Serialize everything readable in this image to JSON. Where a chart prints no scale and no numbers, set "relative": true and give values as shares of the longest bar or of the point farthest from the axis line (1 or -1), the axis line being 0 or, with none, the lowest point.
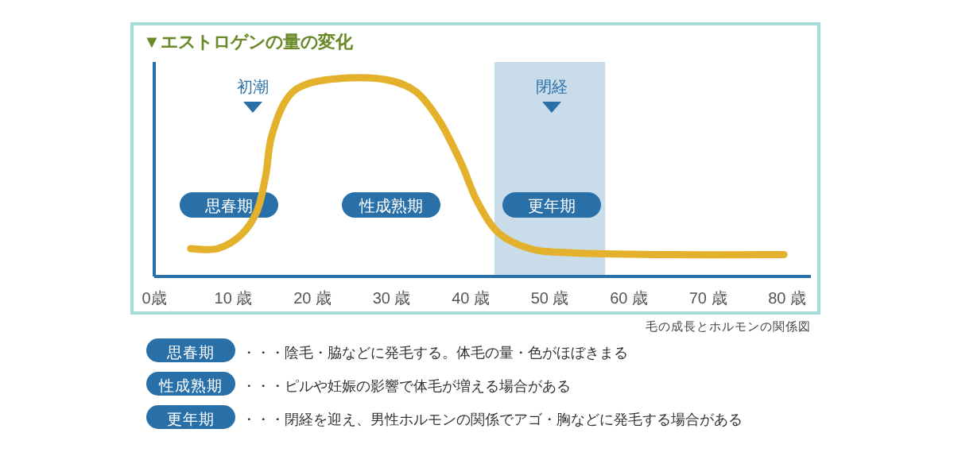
{
  "chart_data": {
    "type": "line",
    "title": "▼エストロゲンの量の変化",
    "relative": true,
    "color": "#e3b12c",
    "x": [
      4.6,
      8.0,
      11.0,
      13.0,
      14.1,
      14.8,
      16.7,
      19.4,
      24.7,
      29.4,
      33.1,
      36.1,
      38.8,
      40.8,
      43.5,
      47.5,
      52.2,
      63.5,
      79.6
    ],
    "values": [
      0.14,
      0.14,
      0.21,
      0.33,
      0.51,
      0.7,
      0.89,
      0.97,
      1.0,
      0.99,
      0.93,
      0.78,
      0.57,
      0.38,
      0.22,
      0.14,
      0.12,
      0.11,
      0.11
    ],
    "xlim": [
      0,
      83
    ],
    "xticks": [
      {
        "value": 0,
        "label": "0歳"
      },
      {
        "value": 10,
        "label": "10 歳"
      },
      {
        "value": 20,
        "label": "20 歳"
      },
      {
        "value": 30,
        "label": "30 歳"
      },
      {
        "value": 40,
        "label": "40 歳"
      },
      {
        "value": 50,
        "label": "50 歳"
      },
      {
        "value": 60,
        "label": "60 歳"
      },
      {
        "value": 70,
        "label": "70 歳"
      },
      {
        "value": 80,
        "label": "80 歳"
      }
    ],
    "bands": [
      {
        "axis": "x",
        "from": 43,
        "to": 57,
        "color": "#c9dcea"
      }
    ],
    "annotations": [
      "初潮",
      "閉経",
      "思春期",
      "性成熟期",
      "更年期",
      "毛の成長とホルモンの関係図",
      "思春期",
      "・・・陰毛・脇などに発毛する。体毛の量・色がほぼきまる",
      "性成熟期",
      "・・・ピルや妊娠の影響で体毛が増える場合がある",
      "更年期",
      "・・・閉経を迎え、男性ホルモンの関係でアゴ・胸などに発毛する場合がある"
    ]
  }
}
